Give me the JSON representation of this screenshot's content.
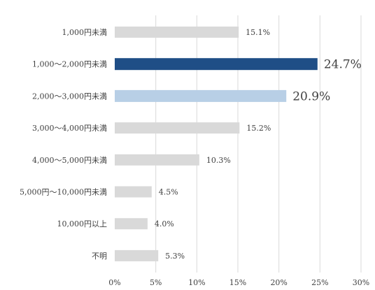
{
  "chart_data": {
    "type": "bar",
    "orientation": "horizontal",
    "title": "",
    "xlabel": "",
    "ylabel": "",
    "categories": [
      "1,000円未満",
      "1,000～2,000円未満",
      "2,000～3,000円未満",
      "3,000～4,000円未満",
      "4,000～5,000円未満",
      "5,000円～10,000円未満",
      "10,000円以上",
      "不明"
    ],
    "values": [
      15.1,
      24.7,
      20.9,
      15.2,
      10.3,
      4.5,
      4.0,
      5.3
    ],
    "value_labels": [
      "15.1%",
      "24.7%",
      "20.9%",
      "15.2%",
      "10.3%",
      "4.5%",
      "4.0%",
      "5.3%"
    ],
    "highlight": [
      false,
      true,
      true,
      false,
      false,
      false,
      false,
      false
    ],
    "bar_colors": [
      "#d9d9d9",
      "#1f4e86",
      "#b8cfe6",
      "#d9d9d9",
      "#d9d9d9",
      "#d9d9d9",
      "#d9d9d9",
      "#d9d9d9"
    ],
    "xlim": [
      0,
      30
    ],
    "x_ticks": [
      0,
      5,
      10,
      15,
      20,
      25,
      30
    ],
    "x_tick_labels": [
      "0%",
      "5%",
      "10%",
      "15%",
      "20%",
      "25%",
      "30%"
    ],
    "grid": "vertical",
    "gridline_color": "#d9d9d9",
    "legend": "none"
  }
}
